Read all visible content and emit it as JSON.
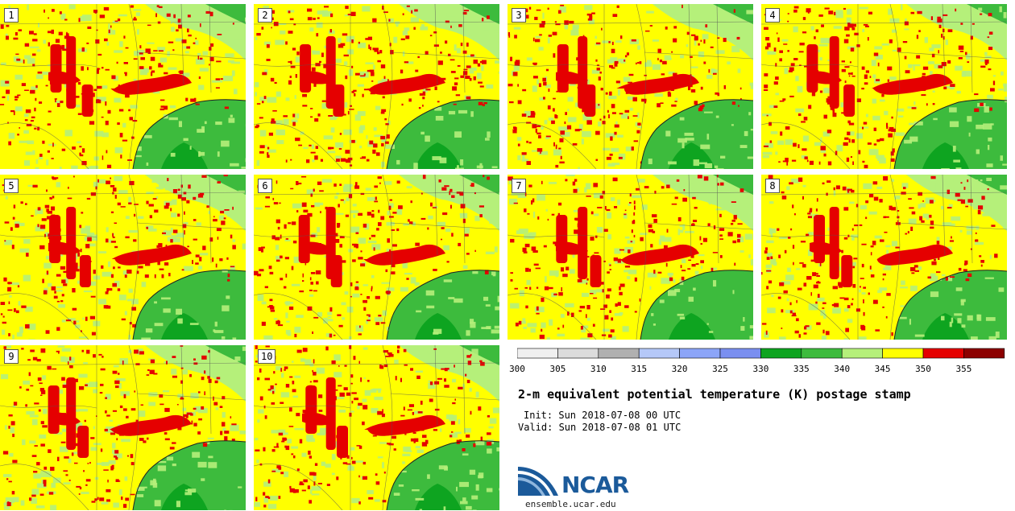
{
  "panels": [
    {
      "label": "1"
    },
    {
      "label": "2"
    },
    {
      "label": "3"
    },
    {
      "label": "4"
    },
    {
      "label": "5"
    },
    {
      "label": "6"
    },
    {
      "label": "7"
    },
    {
      "label": "8"
    },
    {
      "label": "9"
    },
    {
      "label": "10"
    }
  ],
  "colorbar": {
    "ticks": [
      "300",
      "305",
      "310",
      "315",
      "320",
      "325",
      "330",
      "335",
      "340",
      "345",
      "350",
      "355"
    ],
    "colors": [
      "#f0f0f0",
      "#dcdcdc",
      "#b0b0b0",
      "#b5c8f8",
      "#8ca5f8",
      "#7a8ff0",
      "#0ea420",
      "#3dbb3d",
      "#b5f07a",
      "#ffff00",
      "#e50000",
      "#8c0000"
    ]
  },
  "title": "2-m equivalent potential temperature (K) postage stamp",
  "init": "Init: Sun 2018-07-08 00 UTC",
  "valid": "Valid: Sun 2018-07-08 01 UTC",
  "logo": {
    "text": "NCAR",
    "site": "ensemble.ucar.edu",
    "color": "#1b5a9a"
  },
  "map_colors": {
    "hot": "#e50000",
    "warm": "#ffff00",
    "mild": "#b5f07a",
    "gulf": "#3dbb3d",
    "gulf_deep": "#0ea420"
  }
}
